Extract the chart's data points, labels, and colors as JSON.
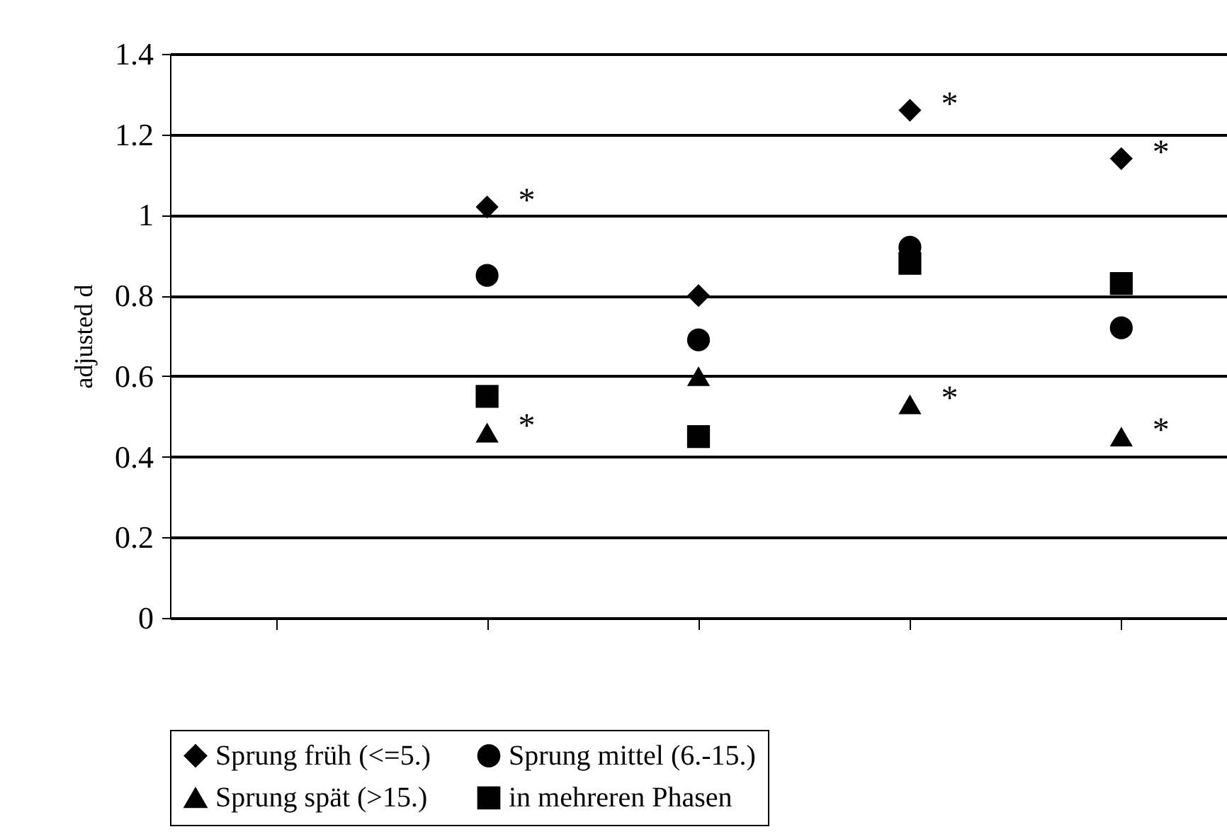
{
  "chart_data": {
    "type": "scatter",
    "ylabel": "adjusted d",
    "categories": [
      null,
      null,
      null,
      null,
      null
    ],
    "ylim": [
      0,
      1.4
    ],
    "yticks": [
      0,
      0.2,
      0.4,
      0.6,
      0.8,
      1,
      1.2,
      1.4
    ],
    "tick_labels": "y",
    "grid": "y",
    "legend": "bottom",
    "series": [
      {
        "name": "Sprung früh (<=5.)",
        "color": "#000000",
        "marker": "diamond",
        "values": [
          null,
          1.02,
          0.8,
          1.26,
          1.14
        ],
        "value_labels": [
          null,
          "*",
          null,
          "*",
          "*"
        ]
      },
      {
        "name": "Sprung mittel (6.-15.)",
        "color": "#000000",
        "marker": "circle",
        "values": [
          null,
          0.85,
          0.69,
          0.92,
          0.72
        ]
      },
      {
        "name": "Sprung spät (>15.)",
        "color": "#000000",
        "marker": "triangle",
        "values": [
          null,
          0.46,
          0.6,
          0.53,
          0.45
        ],
        "value_labels": [
          null,
          "*",
          null,
          "*",
          "*"
        ]
      },
      {
        "name": "in mehreren Phasen",
        "color": "#000000",
        "marker": "square",
        "values": [
          null,
          0.55,
          0.45,
          0.88,
          0.83
        ]
      }
    ]
  }
}
